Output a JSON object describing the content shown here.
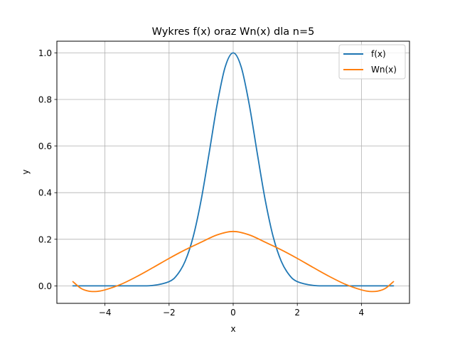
{
  "chart_data": {
    "type": "line",
    "title": "Wykres f(x) oraz Wn(x) dla n=5",
    "xlabel": "x",
    "ylabel": "y",
    "xlim": [
      -5.5,
      5.5
    ],
    "ylim": [
      -0.075,
      1.05
    ],
    "grid": true,
    "legend_position": "top-right",
    "xticks": [
      -4,
      -2,
      0,
      2,
      4
    ],
    "xtick_labels": [
      "−4",
      "−2",
      "0",
      "2",
      "4"
    ],
    "yticks": [
      0.0,
      0.2,
      0.4,
      0.6,
      0.8,
      1.0
    ],
    "ytick_labels": [
      "0.0",
      "0.2",
      "0.4",
      "0.6",
      "0.8",
      "1.0"
    ],
    "series": [
      {
        "name": "f(x)",
        "color": "#1f77b4",
        "x": [
          -5,
          -4,
          -3,
          -2.5,
          -2,
          -1.75,
          -1.5,
          -1.25,
          -1,
          -0.75,
          -0.5,
          -0.25,
          0,
          0.25,
          0.5,
          0.75,
          1,
          1.25,
          1.5,
          1.75,
          2,
          2.5,
          3,
          4,
          5
        ],
        "y": [
          0.0,
          0.0,
          0.0001,
          0.0019,
          0.0183,
          0.0468,
          0.1054,
          0.2096,
          0.3679,
          0.5698,
          0.7788,
          0.9394,
          1.0,
          0.9394,
          0.7788,
          0.5698,
          0.3679,
          0.2096,
          0.1054,
          0.0468,
          0.0183,
          0.0019,
          0.0001,
          0.0,
          0.0
        ]
      },
      {
        "name": "Wn(x)",
        "color": "#ff7f0e",
        "x": [
          -5,
          -4.75,
          -4.5,
          -4.25,
          -4,
          -3.5,
          -3,
          -2.5,
          -2,
          -1.5,
          -1,
          -0.5,
          0,
          0.5,
          1,
          1.5,
          2,
          2.5,
          3,
          3.5,
          4,
          4.25,
          4.5,
          4.75,
          5
        ],
        "y": [
          0.0183,
          -0.0105,
          -0.0227,
          -0.0238,
          -0.0173,
          0.0068,
          0.0405,
          0.0785,
          0.1179,
          0.1546,
          0.1874,
          0.2189,
          0.2335,
          0.2189,
          0.1874,
          0.1546,
          0.1179,
          0.0785,
          0.0405,
          0.0068,
          -0.0173,
          -0.0238,
          -0.0227,
          -0.0105,
          0.0183
        ]
      }
    ]
  }
}
